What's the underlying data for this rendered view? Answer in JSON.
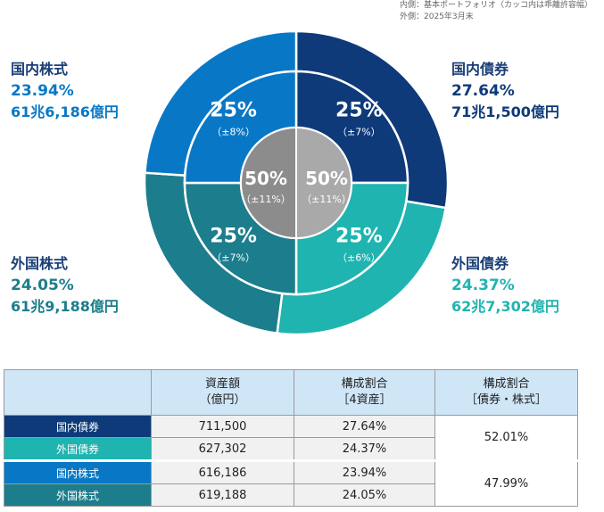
{
  "note": {
    "line1": "内側：基本ポートフォリオ（カッコ内は乖離許容幅）",
    "line2": "外側：2025年3月末"
  },
  "chart_data": [
    {
      "type": "pie",
      "ring": "outer",
      "categories": [
        "国内債券",
        "外国債券",
        "外国株式",
        "国内株式"
      ],
      "values": [
        27.64,
        24.37,
        24.05,
        23.94
      ],
      "amounts": [
        "71兆1,500億円",
        "62兆7,302億円",
        "61兆9,188億円",
        "61兆6,186億円"
      ],
      "colors": [
        "#0e3a79",
        "#1fb4b0",
        "#1c7d8c",
        "#0878c6"
      ]
    },
    {
      "type": "pie",
      "ring": "middle",
      "categories": [
        "国内債券",
        "外国債券",
        "外国株式",
        "国内株式"
      ],
      "values": [
        25,
        25,
        25,
        25
      ],
      "labels": [
        "25%",
        "25%",
        "25%",
        "25%"
      ],
      "ranges": [
        "（±7%）",
        "（±6%）",
        "（±7%）",
        "（±8%）"
      ],
      "colors": [
        "#0e3a79",
        "#1fb4b0",
        "#1c7d8c",
        "#0878c6"
      ]
    },
    {
      "type": "pie",
      "ring": "inner",
      "categories": [
        "債券",
        "株式"
      ],
      "values": [
        50,
        50
      ],
      "labels": [
        "50%",
        "50%"
      ],
      "ranges": [
        "（±11%）",
        "（±11%）"
      ],
      "colors": [
        "#a9a9a9",
        "#8c8c8c"
      ]
    },
    {
      "type": "table",
      "headers": [
        "",
        "資産額\n（億円）",
        "構成割合\n［4資産］",
        "構成割合\n［債券・株式］"
      ],
      "rows": [
        {
          "label": "国内債券",
          "amount": "711,500",
          "share": "27.64%",
          "color": "#0e3a79"
        },
        {
          "label": "外国債券",
          "amount": "627,302",
          "share": "24.37%",
          "color": "#1fb4b0"
        },
        {
          "label": "国内株式",
          "amount": "616,186",
          "share": "23.94%",
          "color": "#0878c6"
        },
        {
          "label": "外国株式",
          "amount": "619,188",
          "share": "24.05%",
          "color": "#1c7d8c"
        }
      ],
      "combined": [
        "52.01%",
        "47.99%"
      ]
    }
  ],
  "labels": {
    "jp_stock": {
      "name": "国内株式",
      "pct": "23.94%",
      "amount": "61兆6,186億円",
      "color": "#0878c6"
    },
    "jp_bond": {
      "name": "国内債券",
      "pct": "27.64%",
      "amount": "71兆1,500億円",
      "color": "#0e3a79"
    },
    "fx_stock": {
      "name": "外国株式",
      "pct": "24.05%",
      "amount": "61兆9,188億円",
      "color": "#1c7d8c"
    },
    "fx_bond": {
      "name": "外国債券",
      "pct": "24.37%",
      "amount": "62兆7,302億円",
      "color": "#1fb4b0"
    }
  }
}
